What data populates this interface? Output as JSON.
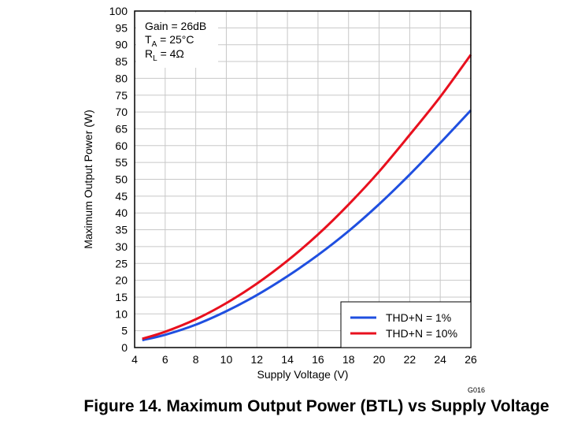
{
  "chart_data": {
    "type": "line",
    "title": "",
    "xlabel": "Supply Voltage (V)",
    "ylabel": "Maximum Output Power (W)",
    "xlim": [
      4,
      26
    ],
    "ylim": [
      0,
      100
    ],
    "x_ticks": [
      4,
      6,
      8,
      10,
      12,
      14,
      16,
      18,
      20,
      22,
      24,
      26
    ],
    "y_ticks": [
      0,
      5,
      10,
      15,
      20,
      25,
      30,
      35,
      40,
      45,
      50,
      55,
      60,
      65,
      70,
      75,
      80,
      85,
      90,
      95,
      100
    ],
    "grid": true,
    "legend_position": "bottom-right",
    "series": [
      {
        "name": "THD+N = 1%",
        "color": "#1f4fe0",
        "x": [
          4.5,
          6,
          8,
          10,
          12,
          14,
          16,
          18,
          20,
          22,
          24,
          26
        ],
        "y": [
          2.2,
          3.8,
          6.8,
          10.8,
          15.6,
          21.2,
          27.5,
          34.6,
          42.6,
          51.4,
          60.8,
          70.5
        ]
      },
      {
        "name": "THD+N = 10%",
        "color": "#e8101e",
        "x": [
          4.5,
          6,
          8,
          10,
          12,
          14,
          16,
          18,
          20,
          22,
          24,
          26
        ],
        "y": [
          2.6,
          4.7,
          8.4,
          13.2,
          19.0,
          25.8,
          33.6,
          42.5,
          52.3,
          63.2,
          74.5,
          87.0
        ]
      }
    ],
    "annotations": {
      "gain": "Gain = 26dB",
      "ta_main": "T",
      "ta_sub": "A",
      "ta_rest": " = 25°C",
      "rl_main": "R",
      "rl_sub": "L",
      "rl_rest": " = 4Ω"
    },
    "figure_code": "G016"
  },
  "caption": "Figure 14. Maximum Output Power (BTL) vs Supply Voltage"
}
